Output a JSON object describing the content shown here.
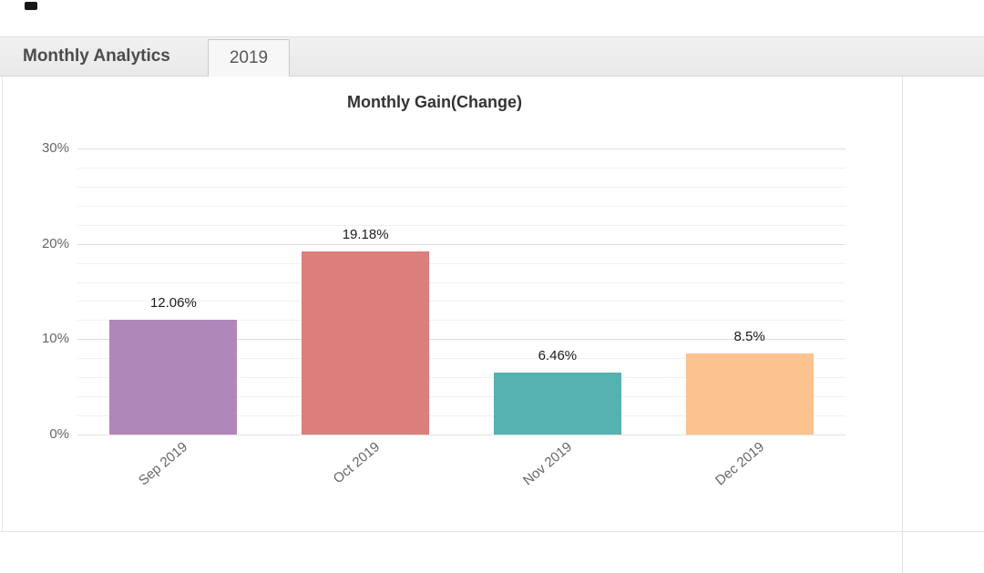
{
  "header": {
    "title": "Monthly Analytics",
    "tab": "2019"
  },
  "colors": {
    "header_background": "#eeeeee",
    "tab_background": "#f7f7f7",
    "border": "#d6d6d6",
    "grid_major": "#e0e0e0",
    "grid_minor": "#f1f1f1",
    "axis_text": "#666666",
    "value_text": "#1b1b1b",
    "title_text": "#333333"
  },
  "chart_data": {
    "type": "bar",
    "title": "Monthly Gain(Change)",
    "categories": [
      "Sep 2019",
      "Oct 2019",
      "Nov 2019",
      "Dec 2019"
    ],
    "values": [
      12.06,
      19.18,
      6.46,
      8.5
    ],
    "value_labels": [
      "12.06%",
      "19.18%",
      "6.46%",
      "8.5%"
    ],
    "bar_colors": [
      "#af87b8",
      "#db7e7c",
      "#55b2b0",
      "#fcc290"
    ],
    "y_ticks": [
      "0%",
      "10%",
      "20%",
      "30%"
    ],
    "y_tick_values": [
      0,
      10,
      20,
      30
    ],
    "ylim": [
      0,
      30
    ],
    "minor_grid_step": 2,
    "grid": true,
    "legend": "none",
    "xlabel": "",
    "ylabel": ""
  }
}
